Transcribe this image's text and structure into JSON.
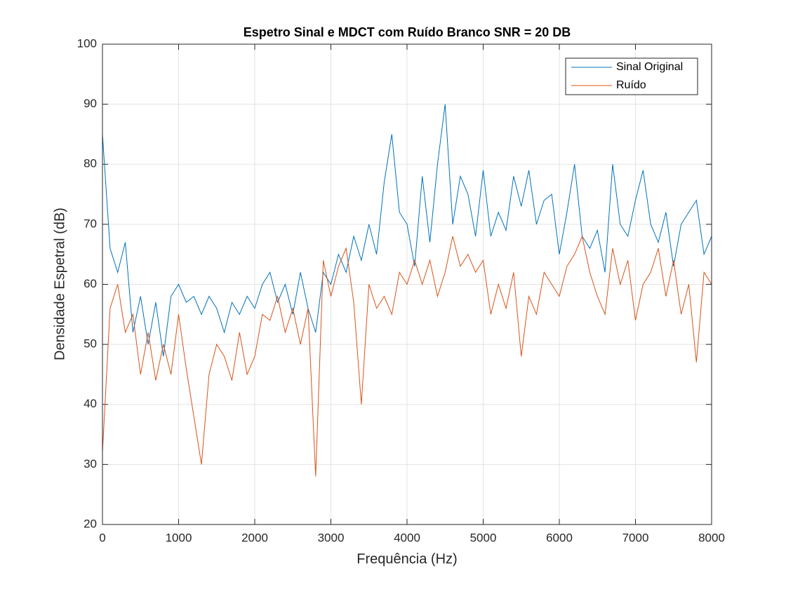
{
  "chart_data": {
    "type": "line",
    "title": "Espetro Sinal e MDCT com Ruído Branco SNR = 20 DB",
    "x_label": "Frequência (Hz)",
    "y_label": "Densidade Espetral (dB)",
    "x": [
      0,
      100,
      200,
      300,
      400,
      500,
      600,
      700,
      800,
      900,
      1000,
      1100,
      1200,
      1300,
      1400,
      1500,
      1600,
      1700,
      1800,
      1900,
      2000,
      2100,
      2200,
      2300,
      2400,
      2500,
      2600,
      2700,
      2800,
      2900,
      3000,
      3100,
      3200,
      3300,
      3400,
      3500,
      3600,
      3700,
      3800,
      3900,
      4000,
      4100,
      4200,
      4300,
      4400,
      4500,
      4600,
      4700,
      4800,
      4900,
      5000,
      5100,
      5200,
      5300,
      5400,
      5500,
      5600,
      5700,
      5800,
      5900,
      6000,
      6100,
      6200,
      6300,
      6400,
      6500,
      6600,
      6700,
      6800,
      6900,
      7000,
      7100,
      7200,
      7300,
      7400,
      7500,
      7600,
      7700,
      7800,
      7900,
      8000
    ],
    "series": [
      {
        "name": "Sinal Original",
        "color": "#0072BD",
        "values": [
          85,
          66,
          62,
          67,
          52,
          58,
          50,
          57,
          48,
          58,
          60,
          57,
          58,
          55,
          58,
          56,
          52,
          57,
          55,
          58,
          56,
          60,
          62,
          57,
          60,
          55,
          62,
          56,
          52,
          62,
          60,
          65,
          62,
          68,
          64,
          70,
          65,
          77,
          85,
          72,
          70,
          63,
          78,
          67,
          80,
          90,
          70,
          78,
          75,
          68,
          79,
          68,
          72,
          69,
          78,
          73,
          79,
          70,
          74,
          75,
          65,
          72,
          80,
          68,
          66,
          69,
          62,
          80,
          70,
          68,
          74,
          79,
          70,
          67,
          72,
          63,
          70,
          72,
          74,
          65,
          68
        ]
      },
      {
        "name": "Ruído",
        "color": "#D95319",
        "values": [
          32,
          56,
          60,
          52,
          55,
          45,
          52,
          44,
          50,
          45,
          55,
          46,
          38,
          30,
          45,
          50,
          48,
          44,
          52,
          45,
          48,
          55,
          54,
          58,
          52,
          56,
          50,
          56,
          28,
          64,
          58,
          63,
          66,
          57,
          40,
          60,
          56,
          58,
          55,
          62,
          60,
          64,
          60,
          64,
          58,
          62,
          68,
          63,
          65,
          62,
          64,
          55,
          60,
          56,
          62,
          48,
          58,
          55,
          62,
          60,
          58,
          63,
          65,
          68,
          62,
          58,
          55,
          66,
          60,
          64,
          54,
          60,
          62,
          66,
          58,
          64,
          55,
          60,
          47,
          62,
          60
        ]
      }
    ],
    "xlim": [
      0,
      8000
    ],
    "xticks": [
      0,
      1000,
      2000,
      3000,
      4000,
      5000,
      6000,
      7000,
      8000
    ],
    "ylim": [
      20,
      100
    ],
    "yticks": [
      20,
      30,
      40,
      50,
      60,
      70,
      80,
      90,
      100
    ],
    "grid": true,
    "legend": "northeast"
  }
}
